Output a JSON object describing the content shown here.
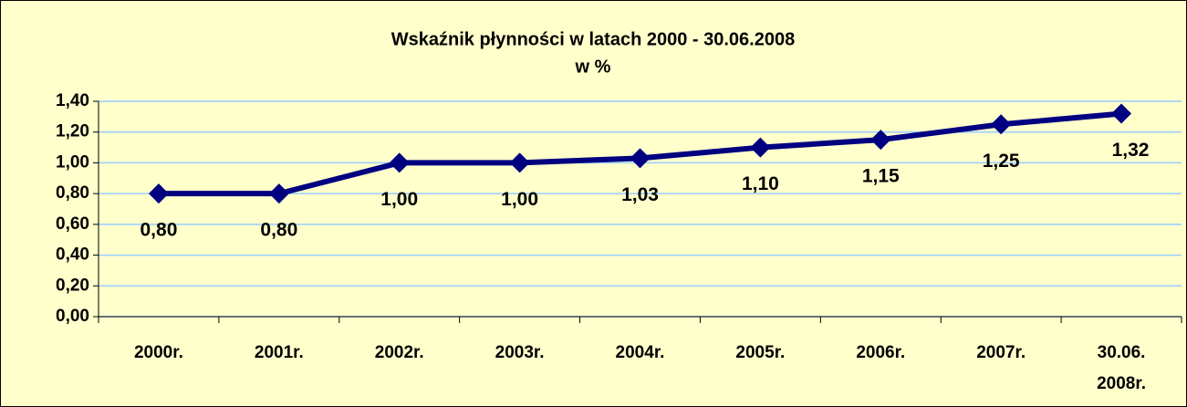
{
  "chart_data": {
    "type": "line",
    "title": "Wskaźnik płynności w latach 2000 - 30.06.2008",
    "subtitle": "w %",
    "categories": [
      "2000r.",
      "2001r.",
      "2002r.",
      "2003r.",
      "2004r.",
      "2005r.",
      "2006r.",
      "2007r.",
      "30.06. 2008r."
    ],
    "series": [
      {
        "name": "Wskaźnik płynności",
        "color": "#000080",
        "values": [
          0.8,
          0.8,
          1.0,
          1.0,
          1.03,
          1.1,
          1.15,
          1.25,
          1.32
        ],
        "value_labels": [
          "0,80",
          "0,80",
          "1,00",
          "1,00",
          "1,03",
          "1,10",
          "1,15",
          "1,25",
          "1,32"
        ]
      }
    ],
    "ylim": [
      0,
      1.4
    ],
    "yticks": [
      {
        "value": 0,
        "label": "0,00"
      },
      {
        "value": 0.2,
        "label": "0,20"
      },
      {
        "value": 0.4,
        "label": "0,40"
      },
      {
        "value": 0.6,
        "label": "0,60"
      },
      {
        "value": 0.8,
        "label": "0,80"
      },
      {
        "value": 1.0,
        "label": "1,00"
      },
      {
        "value": 1.2,
        "label": "1,20"
      },
      {
        "value": 1.4,
        "label": "1,40"
      }
    ],
    "grid": true
  }
}
